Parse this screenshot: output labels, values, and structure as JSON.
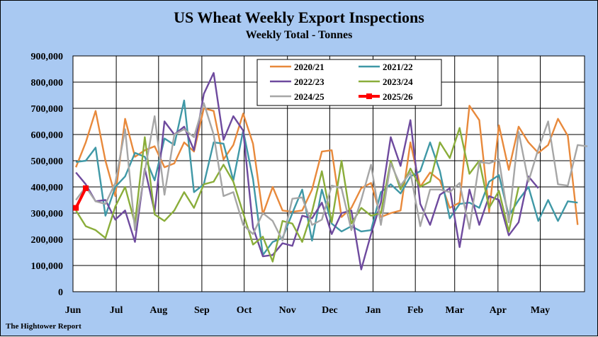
{
  "chart_data": {
    "type": "line",
    "title": "US Wheat Weekly Export Inspections",
    "subtitle": "Weekly Total - Tonnes",
    "footer": "The Hightower Report",
    "ylim": [
      0,
      900000
    ],
    "y_ticks": [
      {
        "value": 0,
        "label": "0"
      },
      {
        "value": 100000,
        "label": "100,000"
      },
      {
        "value": 200000,
        "label": "200,000"
      },
      {
        "value": 300000,
        "label": "300,000"
      },
      {
        "value": 400000,
        "label": "400,000"
      },
      {
        "value": 500000,
        "label": "500,000"
      },
      {
        "value": 600000,
        "label": "600,000"
      },
      {
        "value": 700000,
        "label": "700,000"
      },
      {
        "value": 800000,
        "label": "800,000"
      },
      {
        "value": 900000,
        "label": "900,000"
      }
    ],
    "x_ticks": [
      {
        "week": 0,
        "label": "Jun"
      },
      {
        "week": 4.4,
        "label": "Jul"
      },
      {
        "week": 8.7,
        "label": "Aug"
      },
      {
        "week": 13.1,
        "label": "Sep"
      },
      {
        "week": 17.4,
        "label": "Oct"
      },
      {
        "week": 21.8,
        "label": "Nov"
      },
      {
        "week": 26.1,
        "label": "Dec"
      },
      {
        "week": 30.5,
        "label": "Jan"
      },
      {
        "week": 34.8,
        "label": "Feb"
      },
      {
        "week": 38.8,
        "label": "Mar"
      },
      {
        "week": 43.2,
        "label": "Apr"
      },
      {
        "week": 47.5,
        "label": "May"
      }
    ],
    "xlim": [
      0,
      52
    ],
    "grid": true,
    "legend_position": "top-right",
    "series": [
      {
        "name": "2020/21",
        "color": "#e8893b",
        "values": [
          475000,
          570000,
          690000,
          500000,
          365000,
          660000,
          515000,
          540000,
          555000,
          475000,
          490000,
          570000,
          535000,
          700000,
          690000,
          505000,
          560000,
          680000,
          565000,
          295000,
          400000,
          310000,
          305000,
          310000,
          390000,
          535000,
          540000,
          285000,
          320000,
          395000,
          415000,
          285000,
          300000,
          310000,
          570000,
          400000,
          455000,
          425000,
          320000,
          340000,
          710000,
          655000,
          305000,
          635000,
          465000,
          630000,
          570000,
          530000,
          560000,
          660000,
          595000,
          255000
        ]
      },
      {
        "name": "2021/22",
        "color": "#3f98a6",
        "values": [
          495000,
          500000,
          550000,
          290000,
          400000,
          440000,
          530000,
          515000,
          425000,
          585000,
          560000,
          730000,
          380000,
          410000,
          570000,
          565000,
          425000,
          615000,
          430000,
          140000,
          190000,
          205000,
          300000,
          390000,
          195000,
          390000,
          260000,
          230000,
          250000,
          230000,
          235000,
          380000,
          410000,
          375000,
          440000,
          460000,
          570000,
          460000,
          280000,
          335000,
          340000,
          320000,
          420000,
          445000,
          290000,
          350000,
          400000,
          270000,
          350000,
          270000,
          345000,
          340000
        ]
      },
      {
        "name": "2022/23",
        "color": "#6e4a9e",
        "values": [
          455000,
          410000,
          345000,
          350000,
          275000,
          310000,
          190000,
          470000,
          305000,
          650000,
          600000,
          630000,
          540000,
          755000,
          835000,
          580000,
          670000,
          615000,
          245000,
          135000,
          140000,
          185000,
          175000,
          290000,
          280000,
          340000,
          220000,
          300000,
          310000,
          85000,
          220000,
          340000,
          590000,
          480000,
          655000,
          335000,
          255000,
          370000,
          395000,
          170000,
          390000,
          255000,
          365000,
          350000,
          215000,
          265000,
          440000,
          395000
        ]
      },
      {
        "name": "2023/24",
        "color": "#8aad3a",
        "values": [
          310000,
          250000,
          235000,
          205000,
          325000,
          400000,
          260000,
          590000,
          295000,
          270000,
          310000,
          380000,
          320000,
          410000,
          420000,
          485000,
          420000,
          300000,
          180000,
          210000,
          115000,
          270000,
          260000,
          190000,
          305000,
          460000,
          265000,
          500000,
          260000,
          320000,
          290000,
          300000,
          500000,
          390000,
          470000,
          400000,
          420000,
          570000,
          510000,
          625000,
          450000,
          500000,
          320000,
          385000,
          230000,
          400000
        ]
      },
      {
        "name": "2024/25",
        "color": "#a6a6a6",
        "values": [
          350000,
          400000,
          345000,
          335000,
          415000,
          620000,
          235000,
          460000,
          670000,
          370000,
          600000,
          620000,
          590000,
          720000,
          600000,
          365000,
          380000,
          255000,
          220000,
          300000,
          270000,
          195000,
          355000,
          360000,
          255000,
          275000,
          405000,
          395000,
          235000,
          350000,
          485000,
          255000,
          490000,
          405000,
          455000,
          250000,
          390000,
          390000,
          380000,
          415000,
          240000,
          495000,
          490000,
          505000,
          265000,
          610000,
          420000,
          545000,
          650000,
          410000,
          405000,
          560000,
          555000
        ]
      },
      {
        "name": "2025/26",
        "color": "#ff0000",
        "values": [
          320000,
          395000
        ]
      }
    ]
  }
}
